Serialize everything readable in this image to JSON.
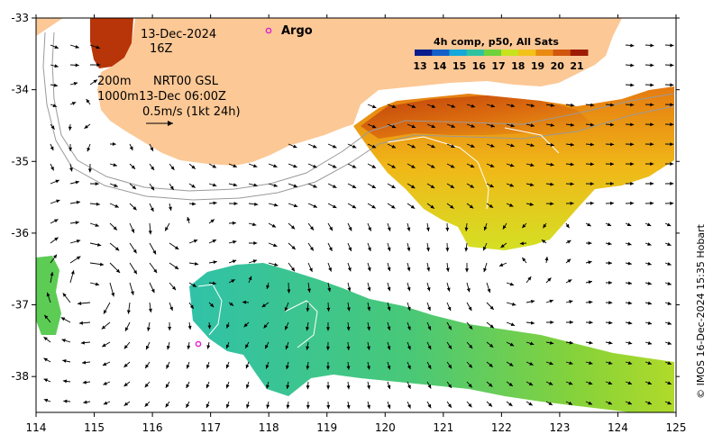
{
  "map": {
    "lon_ticks": [
      "114",
      "115",
      "116",
      "117",
      "118",
      "119",
      "120",
      "121",
      "122",
      "123",
      "124",
      "125"
    ],
    "lat_ticks": [
      "-33",
      "-34",
      "-35",
      "-36",
      "-37",
      "-38"
    ],
    "lon_range": [
      114,
      125
    ],
    "lat_range": [
      -38.5,
      -33
    ]
  },
  "annotations": {
    "date": "13-Dec-2024",
    "hour": "16Z",
    "contour_200": "200m",
    "contour_1000": "1000m",
    "source": "NRT00 GSL",
    "current_time": "13-Dec 06:00Z",
    "scale": "0.5m/s (1kt 24h)",
    "argo_label": "Argo"
  },
  "colorbar": {
    "title": "4h comp, p50, All Sats",
    "ticks": [
      "13",
      "14",
      "15",
      "16",
      "17",
      "18",
      "19",
      "20",
      "21"
    ],
    "colors": [
      "#0b1d8c",
      "#1560c8",
      "#16a8d8",
      "#2fc2a0",
      "#6fd23c",
      "#c8e21e",
      "#f2c21a",
      "#e98a12",
      "#d2560e",
      "#9e1c06"
    ]
  },
  "credit": "© IMOS 16-Dec-2024 15:35 Hobart",
  "colors": {
    "land": "#fcc896",
    "argo": "#e020d0"
  }
}
